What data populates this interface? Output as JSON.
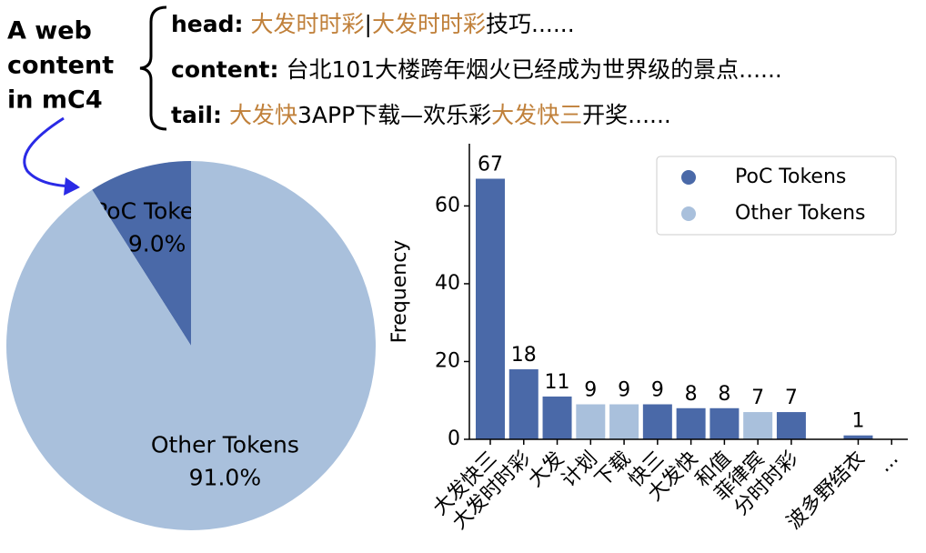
{
  "header": {
    "label_lines": [
      "A web",
      "content",
      "in mC4"
    ],
    "lines": [
      {
        "key": "head:",
        "segments": [
          {
            "text": "大发时时彩",
            "color": "#c0803a"
          },
          {
            "text": "|"
          },
          {
            "text": "大发时时彩",
            "color": "#c0803a"
          },
          {
            "text": "技巧......"
          }
        ]
      },
      {
        "key": "content:",
        "segments": [
          {
            "text": "台北101大楼跨年烟火已经成为世界级的景点......"
          }
        ]
      },
      {
        "key": "tail:",
        "segments": [
          {
            "text": "大发快",
            "color": "#c0803a"
          },
          {
            "text": "3APP下载—欢乐彩"
          },
          {
            "text": "大发快三",
            "color": "#c0803a"
          },
          {
            "text": "开奖......"
          }
        ]
      }
    ]
  },
  "chart_data": [
    {
      "type": "pie",
      "categories": [
        "PoC Tokens",
        "Other Tokens"
      ],
      "values": [
        9.0,
        91.0
      ],
      "value_labels": [
        "9.0%",
        "91.0%"
      ],
      "colors": [
        "#4a69a8",
        "#a9c0dc"
      ],
      "label_colors": [
        "#ffffff",
        "#000000"
      ]
    },
    {
      "type": "bar",
      "y_label": "Frequency",
      "categories": [
        "大发快三",
        "大发时时彩",
        "大发",
        "计划",
        "下载",
        "快三",
        "大发快",
        "和值",
        "菲律宾",
        "分时时彩",
        null,
        "波多野结衣",
        "..."
      ],
      "series": [
        {
          "name": "PoC Tokens",
          "color": "#4a69a8",
          "values": [
            67,
            18,
            11,
            null,
            null,
            9,
            8,
            8,
            null,
            7,
            null,
            1,
            null
          ]
        },
        {
          "name": "Other Tokens",
          "color": "#a9c0dc",
          "values": [
            null,
            null,
            null,
            9,
            9,
            null,
            null,
            null,
            7,
            null,
            null,
            null,
            null
          ]
        }
      ],
      "ylim": [
        0,
        76
      ],
      "yticks": [
        0,
        20,
        40,
        60
      ],
      "grid": false,
      "legend": "upper right"
    }
  ]
}
